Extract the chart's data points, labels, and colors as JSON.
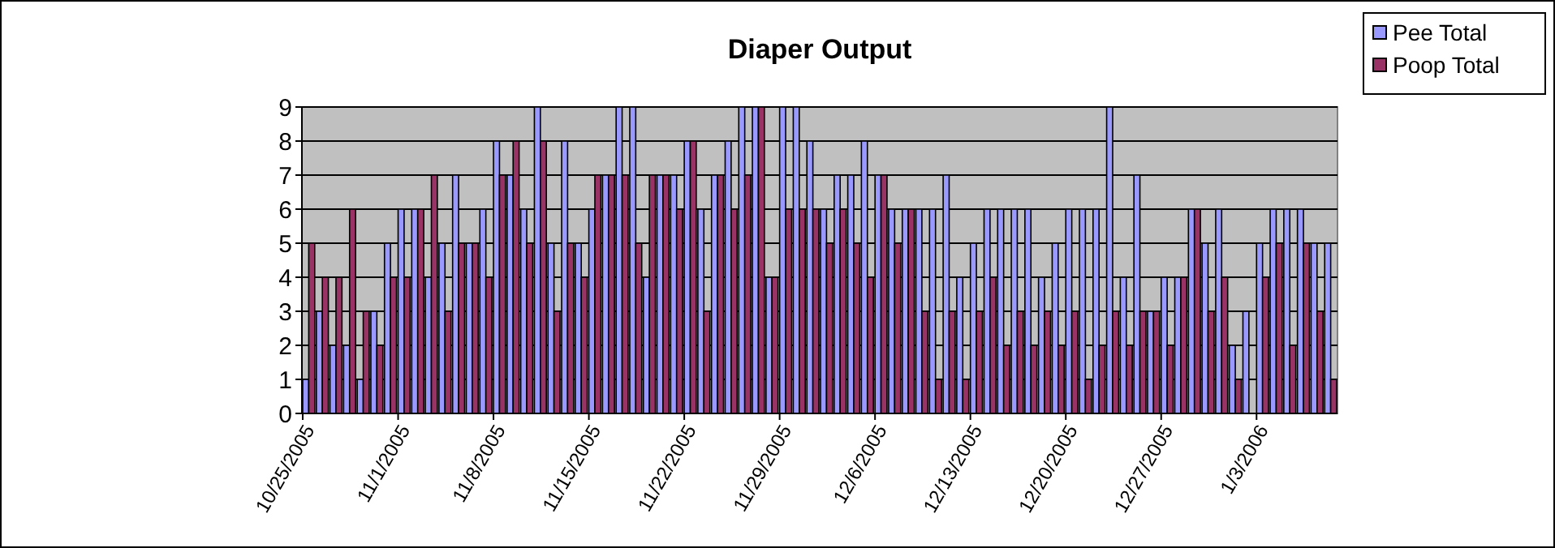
{
  "chart_data": {
    "type": "bar",
    "title": "Diaper Output",
    "categories": [
      "10/25/2005",
      null,
      null,
      null,
      null,
      null,
      null,
      "11/1/2005",
      null,
      null,
      null,
      null,
      null,
      null,
      "11/8/2005",
      null,
      null,
      null,
      null,
      null,
      null,
      "11/15/2005",
      null,
      null,
      null,
      null,
      null,
      null,
      "11/22/2005",
      null,
      null,
      null,
      null,
      null,
      null,
      "11/29/2005",
      null,
      null,
      null,
      null,
      null,
      null,
      "12/6/2005",
      null,
      null,
      null,
      null,
      null,
      null,
      "12/13/2005",
      null,
      null,
      null,
      null,
      null,
      null,
      "12/20/2005",
      null,
      null,
      null,
      null,
      null,
      null,
      "12/27/2005",
      null,
      null,
      null,
      null,
      null,
      null,
      "1/3/2006",
      null,
      null,
      null,
      null,
      null
    ],
    "series": [
      {
        "name": "Pee Total",
        "color": "#9999ff",
        "values": [
          1,
          3,
          2,
          2,
          1,
          3,
          5,
          6,
          6,
          4,
          5,
          7,
          5,
          6,
          8,
          7,
          6,
          9,
          5,
          8,
          5,
          6,
          7,
          9,
          9,
          4,
          7,
          7,
          8,
          6,
          7,
          8,
          9,
          9,
          4,
          9,
          9,
          8,
          6,
          7,
          7,
          8,
          7,
          6,
          6,
          6,
          6,
          7,
          4,
          5,
          6,
          6,
          6,
          6,
          4,
          5,
          6,
          6,
          6,
          9,
          4,
          7,
          3,
          4,
          4,
          6,
          5,
          6,
          2,
          3,
          5,
          6,
          6,
          6,
          5,
          5
        ]
      },
      {
        "name": "Poop Total",
        "color": "#993366",
        "values": [
          5,
          4,
          4,
          6,
          3,
          2,
          4,
          4,
          6,
          7,
          3,
          5,
          5,
          4,
          7,
          8,
          5,
          8,
          3,
          5,
          4,
          7,
          7,
          7,
          5,
          7,
          7,
          6,
          8,
          3,
          7,
          6,
          7,
          9,
          4,
          6,
          6,
          6,
          5,
          6,
          5,
          4,
          7,
          5,
          6,
          3,
          1,
          3,
          1,
          3,
          4,
          2,
          3,
          2,
          3,
          2,
          3,
          1,
          2,
          3,
          2,
          3,
          3,
          2,
          4,
          6,
          3,
          4,
          1,
          0,
          4,
          5,
          2,
          5,
          3,
          1
        ]
      }
    ],
    "ylim": [
      0,
      9
    ],
    "yticks": [
      0,
      1,
      2,
      3,
      4,
      5,
      6,
      7,
      8,
      9
    ],
    "grid": "y",
    "legend": "top right"
  }
}
